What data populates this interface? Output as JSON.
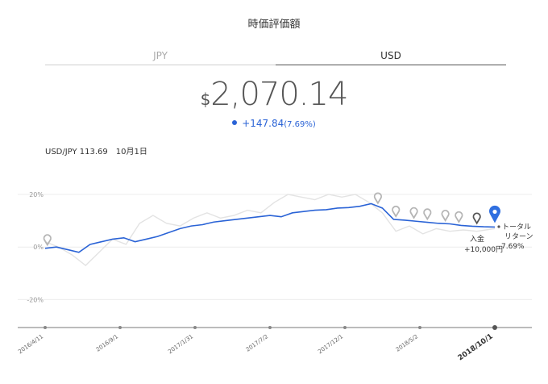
{
  "header": {
    "title": "時価評価額"
  },
  "tabs": [
    {
      "label": "JPY"
    },
    {
      "label": "USD"
    }
  ],
  "summary": {
    "currency_symbol": "$",
    "amount": "2,070.14",
    "change": "+147.84",
    "change_pct": "(7.69%)"
  },
  "rate_info": {
    "pair": "USD/JPY 113.69",
    "date": "10月1日"
  },
  "colors": {
    "series": "#2a63d6",
    "benchmark": "#e3e3e3",
    "pin": "#b5b5b5",
    "pin_dark": "#555555",
    "accent": "#2f6fe0"
  },
  "annotations": {
    "deposit_line1": "入金",
    "deposit_line2": "+10,000円",
    "total_line1": "トータル",
    "total_line2": "リターン",
    "total_line3": "7.69%"
  },
  "chart_data": {
    "type": "line",
    "title": "",
    "xlabel": "",
    "ylabel": "",
    "ylim": [
      -0.3,
      0.2
    ],
    "yticks": [
      {
        "value": 0.2,
        "label": "20%"
      },
      {
        "value": 0.0,
        "label": "0%"
      },
      {
        "value": -0.2,
        "label": "-20%"
      }
    ],
    "xticks": [
      "2016/4/11",
      "2016/9/1",
      "2017/1/31",
      "2017/7/2",
      "2017/12/1",
      "2018/5/2",
      "2018/10/1"
    ],
    "series": [
      {
        "x": [
          0,
          2.5,
          5,
          7.5,
          10,
          12.5,
          15,
          17.5,
          20,
          22.5,
          25,
          27.5,
          30,
          32.5,
          35,
          37.5,
          40,
          42.5,
          45,
          47.5,
          50,
          52.5,
          55,
          57.5,
          60,
          62.5,
          65,
          67.5,
          70,
          72.5,
          75,
          77.5,
          80,
          82.5,
          85,
          87.5,
          90,
          92.5,
          95,
          97.5,
          100
        ],
        "values": [
          -0.005,
          0.0,
          -0.01,
          -0.02,
          0.01,
          0.02,
          0.03,
          0.035,
          0.02,
          0.03,
          0.04,
          0.055,
          0.07,
          0.08,
          0.085,
          0.095,
          0.1,
          0.105,
          0.11,
          0.115,
          0.12,
          0.115,
          0.13,
          0.135,
          0.14,
          0.142,
          0.148,
          0.15,
          0.155,
          0.165,
          0.148,
          0.105,
          0.102,
          0.098,
          0.094,
          0.09,
          0.088,
          0.082,
          0.079,
          0.077,
          0.076
        ]
      },
      {
        "x": [
          0,
          3,
          6,
          9,
          12,
          15,
          18,
          21,
          24,
          27,
          30,
          33,
          36,
          39,
          42,
          45,
          48,
          51,
          54,
          57,
          60,
          63,
          66,
          69,
          72,
          75,
          78,
          81,
          84,
          87,
          90,
          93,
          96,
          100
        ],
        "values": [
          0.02,
          0.0,
          -0.03,
          -0.07,
          -0.02,
          0.03,
          0.01,
          0.09,
          0.12,
          0.09,
          0.08,
          0.11,
          0.13,
          0.11,
          0.12,
          0.14,
          0.13,
          0.17,
          0.2,
          0.19,
          0.18,
          0.2,
          0.19,
          0.2,
          0.17,
          0.13,
          0.06,
          0.08,
          0.05,
          0.07,
          0.06,
          0.065,
          0.06,
          0.07
        ]
      }
    ],
    "pins": [
      0.5,
      74,
      78,
      82,
      85,
      89,
      92,
      96
    ],
    "legend": "none",
    "grid": true
  }
}
